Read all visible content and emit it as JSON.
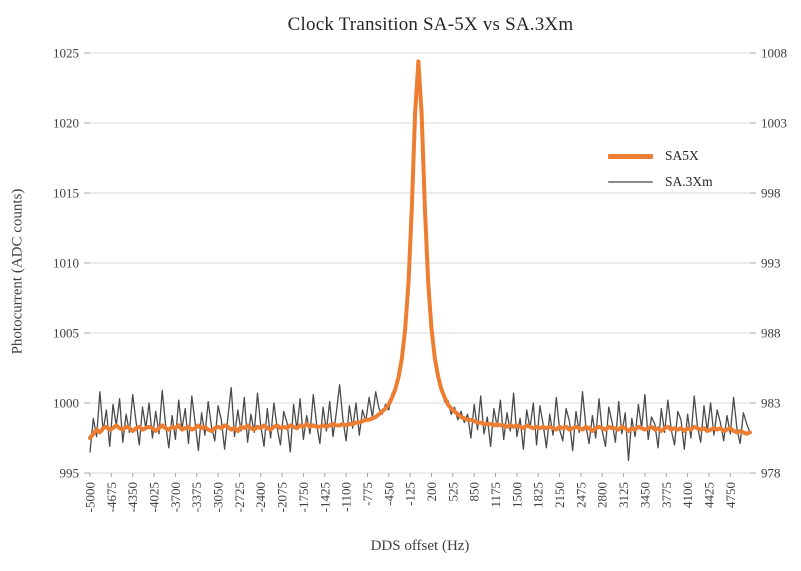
{
  "colors": {
    "grid": "#d9d9d9",
    "tick": "#a6a6a6",
    "text": "#404040",
    "sa5x_orange": "#ED7D31",
    "sa3xm_gray": "#4a4a4a",
    "legend_gray": "#8a8a8a"
  },
  "chart_data": {
    "type": "line",
    "title": "Clock Transition SA-5X vs SA.3Xm",
    "xlabel": "DDS offset (Hz)",
    "ylabel_left": "Photocurrent (ADC counts)",
    "grid": "horizontal",
    "legend_position": "inside-right",
    "x_start": -5000,
    "x_step": 50,
    "x_tick_start": -5000,
    "x_tick_step": 325,
    "x_tick_labels": [
      "-5000",
      "-4675",
      "-4350",
      "-4025",
      "-3700",
      "-3375",
      "-3050",
      "-2725",
      "-2400",
      "-2075",
      "-1750",
      "-1425",
      "-1100",
      "-775",
      "-450",
      "-125",
      "200",
      "525",
      "850",
      "1175",
      "1500",
      "1825",
      "2150",
      "2475",
      "2800",
      "3125",
      "3450",
      "3775",
      "4100",
      "4425",
      "4750"
    ],
    "axes": {
      "left": {
        "min": 995,
        "max": 1025,
        "ticks": [
          1025,
          1020,
          1015,
          1010,
          1005,
          1000,
          995
        ]
      },
      "right": {
        "min": 978,
        "max": 1008,
        "ticks": [
          1008,
          1003,
          998,
          993,
          988,
          983,
          978
        ]
      }
    },
    "legend": [
      {
        "label": "SA5X",
        "color": "#ED7D31",
        "style": "thick"
      },
      {
        "label": "SA.3Xm",
        "color": "#8a8a8a",
        "style": "thin"
      }
    ],
    "series": [
      {
        "name": "SA5X",
        "axis": "left",
        "color": "#ED7D31",
        "width": 4,
        "values": [
          997.5,
          997.8,
          998.1,
          997.9,
          998.2,
          998.3,
          998.1,
          998.2,
          998.4,
          998.2,
          998.1,
          998.3,
          998.2,
          998.0,
          998.2,
          998.3,
          998.1,
          998.2,
          998.3,
          998.2,
          998.0,
          998.2,
          998.4,
          998.2,
          998.1,
          998.3,
          998.2,
          998.4,
          998.1,
          998.2,
          998.3,
          998.1,
          998.2,
          998.4,
          998.2,
          998.3,
          998.1,
          998.0,
          998.2,
          998.3,
          998.2,
          998.4,
          998.3,
          998.1,
          998.2,
          998.0,
          998.3,
          998.2,
          998.4,
          998.2,
          998.1,
          998.3,
          998.2,
          998.4,
          998.2,
          998.1,
          998.3,
          998.4,
          998.2,
          998.3,
          998.2,
          998.4,
          998.3,
          998.2,
          998.4,
          998.3,
          998.5,
          998.3,
          998.4,
          998.3,
          998.3,
          998.4,
          998.3,
          998.4,
          998.5,
          998.4,
          998.4,
          998.5,
          998.4,
          998.5,
          998.5,
          998.6,
          998.6,
          998.7,
          998.8,
          998.8,
          998.9,
          999.0,
          999.2,
          999.4,
          999.6,
          999.9,
          1000.4,
          1001.0,
          1001.9,
          1003.2,
          1005.3,
          1008.6,
          1013.9,
          1020.7,
          1024.4,
          1020.7,
          1013.9,
          1008.6,
          1005.3,
          1003.2,
          1001.9,
          1001.0,
          1000.4,
          999.9,
          999.6,
          999.4,
          999.2,
          999.0,
          998.9,
          998.8,
          998.8,
          998.7,
          998.6,
          998.6,
          998.5,
          998.5,
          998.5,
          998.4,
          998.5,
          998.4,
          998.4,
          998.3,
          998.4,
          998.3,
          998.4,
          998.3,
          998.2,
          998.4,
          998.3,
          998.2,
          998.3,
          998.2,
          998.3,
          998.2,
          998.3,
          998.2,
          998.1,
          998.3,
          998.2,
          998.3,
          998.1,
          998.2,
          998.3,
          998.2,
          998.1,
          998.3,
          998.2,
          998.0,
          998.2,
          998.3,
          998.2,
          998.1,
          998.3,
          998.2,
          998.2,
          998.1,
          998.3,
          998.2,
          998.0,
          998.2,
          998.1,
          998.3,
          998.2,
          998.1,
          998.2,
          998.3,
          998.1,
          998.2,
          998.0,
          998.2,
          998.3,
          998.1,
          998.2,
          998.1,
          998.2,
          998.0,
          998.2,
          998.1,
          998.3,
          998.2,
          998.1,
          998.2,
          998.0,
          998.1,
          998.2,
          998.1,
          998.2,
          998.0,
          998.1,
          998.2,
          998.0,
          997.9,
          998.0,
          997.9,
          997.8,
          997.9
        ]
      },
      {
        "name": "SA.3Xm",
        "axis": "right",
        "color": "#4a4a4a",
        "width": 1.3,
        "values": [
          979.5,
          981.9,
          980.6,
          983.8,
          981.0,
          982.5,
          979.9,
          982.9,
          981.4,
          983.3,
          980.2,
          982.2,
          980.9,
          983.6,
          981.7,
          980.0,
          982.7,
          981.2,
          983.0,
          980.5,
          982.4,
          980.8,
          983.9,
          981.5,
          979.8,
          982.1,
          980.4,
          983.2,
          981.1,
          982.6,
          980.1,
          983.5,
          981.6,
          979.6,
          982.3,
          980.7,
          983.1,
          981.3,
          980.3,
          982.8,
          981.8,
          979.7,
          982.0,
          984.1,
          980.6,
          982.5,
          981.0,
          983.4,
          980.2,
          982.2,
          980.9,
          983.7,
          981.4,
          979.9,
          982.6,
          980.5,
          983.0,
          981.2,
          980.0,
          982.4,
          981.6,
          979.5,
          982.9,
          981.1,
          983.3,
          980.4,
          982.1,
          980.8,
          983.6,
          981.5,
          980.1,
          982.7,
          981.0,
          983.1,
          980.6,
          982.3,
          984.3,
          981.9,
          980.3,
          982.8,
          981.2,
          983.0,
          980.7,
          982.5,
          981.7,
          983.4,
          982.0,
          983.8,
          982.6,
          982.2,
          982.9,
          982.5,
          983.7,
          983.8,
          985.1,
          985.8,
          988.4,
          991.0,
          996.9,
          1002.6,
          1006.5,
          1003.3,
          996.1,
          991.8,
          987.8,
          986.4,
          984.5,
          984.2,
          983.1,
          983.2,
          982.2,
          982.7,
          981.8,
          982.4,
          981.6,
          982.2,
          980.5,
          982.9,
          981.1,
          983.5,
          980.8,
          982.0,
          979.9,
          982.6,
          981.3,
          983.2,
          980.4,
          982.3,
          981.0,
          983.7,
          980.6,
          981.9,
          979.7,
          982.5,
          981.2,
          983.0,
          980.0,
          982.8,
          981.5,
          979.8,
          982.2,
          980.7,
          983.4,
          981.1,
          980.3,
          982.6,
          981.7,
          979.6,
          982.4,
          980.9,
          983.8,
          981.4,
          980.1,
          982.1,
          980.5,
          983.3,
          981.0,
          979.9,
          982.7,
          981.6,
          980.2,
          983.1,
          980.8,
          982.3,
          978.9,
          981.9,
          980.6,
          982.9,
          981.2,
          983.6,
          980.4,
          982.0,
          981.5,
          979.8,
          982.6,
          980.9,
          983.2,
          981.1,
          980.0,
          982.4,
          981.8,
          979.7,
          982.2,
          980.5,
          983.5,
          981.3,
          980.2,
          982.8,
          981.0,
          983.0,
          980.7,
          982.5,
          981.6,
          980.3,
          982.1,
          980.8,
          983.4,
          981.2,
          980.1,
          982.3,
          981.5,
          980.9
        ]
      }
    ]
  }
}
